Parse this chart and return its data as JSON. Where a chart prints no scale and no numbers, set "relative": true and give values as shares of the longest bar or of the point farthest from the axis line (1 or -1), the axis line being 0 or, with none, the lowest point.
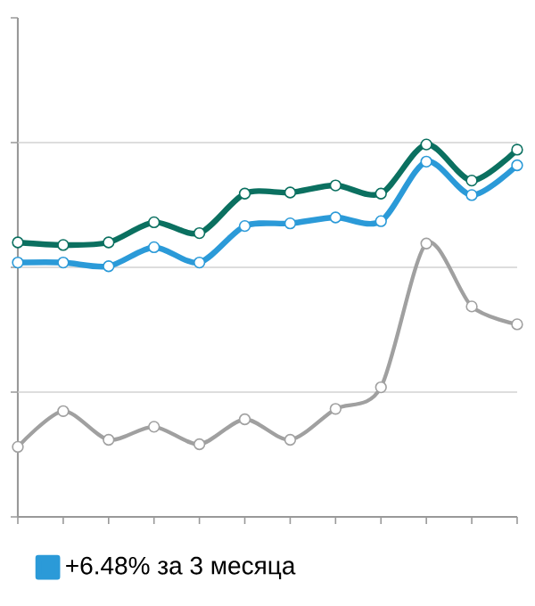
{
  "chart_data": {
    "type": "line",
    "relative": true,
    "ref_lines": [
      {
        "axis": "y",
        "value": 0.335,
        "color": "#d2d2d2"
      },
      {
        "axis": "y",
        "value": 0.67,
        "color": "#d2d2d2"
      },
      {
        "axis": "y",
        "value": 1.005,
        "color": "#d2d2d2"
      }
    ],
    "categories": [
      null,
      null,
      null,
      null,
      null,
      null,
      null,
      null,
      null,
      null,
      null,
      null
    ],
    "series": [
      {
        "color": "#0b7060",
        "values": [
          0.737,
          0.73,
          0.737,
          0.791,
          0.762,
          0.868,
          0.871,
          0.89,
          0.868,
          1,
          0.903,
          0.986
        ]
      },
      {
        "name": "+6.48% за 3 месяца",
        "color": "#2b9ad8",
        "values": [
          0.683,
          0.683,
          0.673,
          0.724,
          0.683,
          0.781,
          0.788,
          0.804,
          0.794,
          0.954,
          0.864,
          0.944
        ]
      },
      {
        "color": "#a0a0a0",
        "values": [
          0.188,
          0.284,
          0.207,
          0.242,
          0.195,
          0.262,
          0.207,
          0.29,
          0.348,
          0.734,
          0.565,
          0.517
        ]
      }
    ],
    "legend": "bottom",
    "marker": "circle",
    "line_style": "solid"
  }
}
